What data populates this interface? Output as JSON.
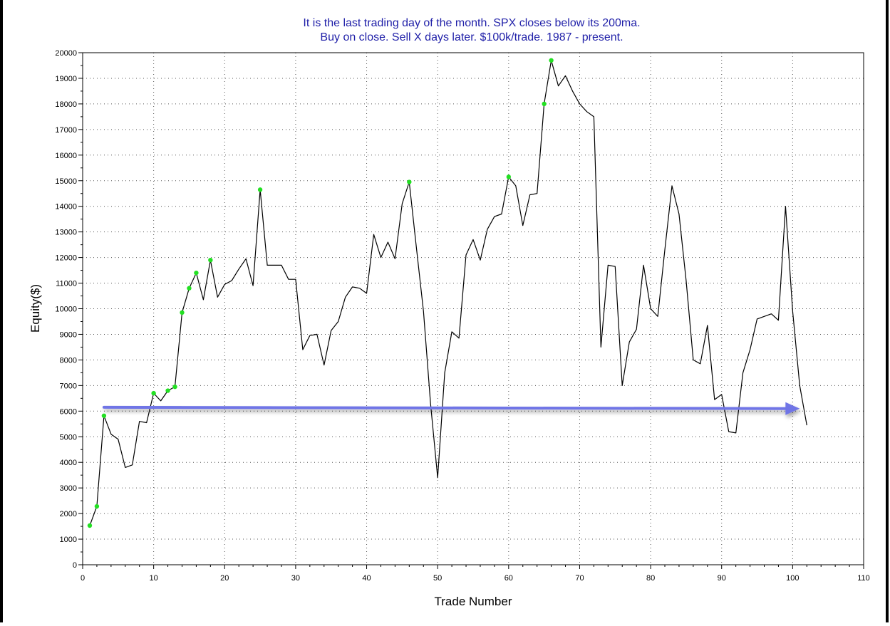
{
  "chart_data": {
    "type": "line",
    "title_lines": [
      "It is the last trading day of the month. SPX closes below its 200ma.",
      "Buy on close. Sell X days later. $100k/trade. 1987 - present."
    ],
    "xlabel": "Trade Number",
    "ylabel": "Equity($)",
    "xlim": [
      0,
      110
    ],
    "ylim": [
      0,
      20000
    ],
    "x_ticks": [
      0,
      10,
      20,
      30,
      40,
      50,
      60,
      70,
      80,
      90,
      100,
      110
    ],
    "y_ticks": [
      0,
      1000,
      2000,
      3000,
      4000,
      5000,
      6000,
      7000,
      8000,
      9000,
      10000,
      11000,
      12000,
      13000,
      14000,
      15000,
      16000,
      17000,
      18000,
      19000,
      20000
    ],
    "grid": true,
    "colors": {
      "title": "#1f1fa8",
      "line": "#000000",
      "marker": "#22e022",
      "arrow": "#6f74e6",
      "frame": "#000000"
    },
    "series": [
      {
        "x": [
          1,
          2,
          3,
          4,
          5,
          6,
          7,
          8,
          9,
          10,
          11,
          12,
          13,
          14,
          15,
          16,
          17,
          18,
          19,
          20,
          21,
          22,
          23,
          24,
          25,
          26,
          27,
          28,
          29,
          30,
          31,
          32,
          33,
          34,
          35,
          36,
          37,
          38,
          39,
          40,
          41,
          42,
          43,
          44,
          45,
          46,
          47,
          48,
          49,
          50,
          51,
          52,
          53,
          54,
          55,
          56,
          57,
          58,
          59,
          60,
          61,
          62,
          63,
          64,
          65,
          66,
          67,
          68,
          69,
          70,
          71,
          72,
          73,
          74,
          75,
          76,
          77,
          78,
          79,
          80,
          81,
          82,
          83,
          84,
          85,
          86,
          87,
          88,
          89,
          90,
          91,
          92,
          93,
          94,
          95,
          96,
          97,
          98,
          99,
          100,
          101,
          102
        ],
        "y": [
          1530,
          2280,
          5820,
          5100,
          4900,
          3800,
          3900,
          5600,
          5550,
          6700,
          6400,
          6800,
          6950,
          9850,
          10800,
          11400,
          10350,
          11900,
          10450,
          10950,
          11100,
          11550,
          11950,
          10900,
          14650,
          11700,
          11700,
          11700,
          11150,
          11150,
          8400,
          8950,
          9000,
          7800,
          9150,
          9500,
          10450,
          10850,
          10800,
          10600,
          12900,
          12000,
          12600,
          11950,
          14100,
          14950,
          12400,
          9900,
          6300,
          3400,
          7500,
          9100,
          8850,
          12100,
          12700,
          11900,
          13100,
          13600,
          13700,
          15150,
          14800,
          13250,
          14450,
          14500,
          18000,
          19700,
          18700,
          19100,
          18500,
          18000,
          17700,
          17500,
          8500,
          11700,
          11650,
          7000,
          8700,
          9200,
          11700,
          10000,
          9700,
          12300,
          14800,
          13700,
          11100,
          8000,
          7850,
          9350,
          6450,
          6650,
          5200,
          5150,
          7500,
          8400,
          9600,
          9700,
          9800,
          9550,
          14000,
          9900,
          7000,
          5450
        ],
        "marked_x": [
          1,
          2,
          3,
          10,
          12,
          13,
          14,
          15,
          16,
          18,
          25,
          46,
          60,
          65,
          66
        ]
      }
    ],
    "annotations": [
      {
        "type": "arrow",
        "from": [
          3,
          6150
        ],
        "to": [
          101,
          6100
        ]
      }
    ]
  }
}
